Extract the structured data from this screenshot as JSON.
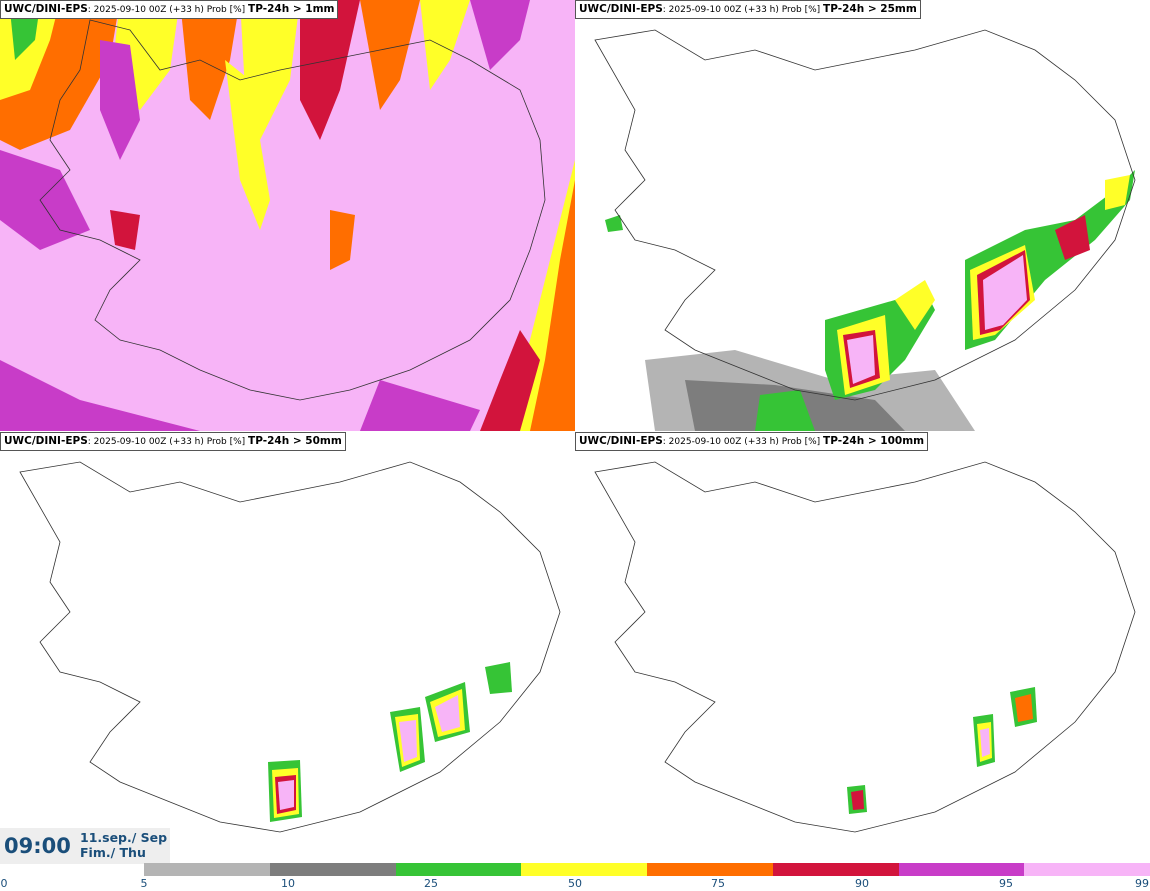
{
  "panels": [
    {
      "model": "UWC/DINI-EPS",
      "run": ": 2025-09-10 00Z (+33 h) Prob [%]",
      "threshold": "TP-24h > 1mm"
    },
    {
      "model": "UWC/DINI-EPS",
      "run": ": 2025-09-10 00Z (+33 h) Prob [%]",
      "threshold": "TP-24h > 25mm"
    },
    {
      "model": "UWC/DINI-EPS",
      "run": ": 2025-09-10 00Z (+33 h) Prob [%]",
      "threshold": "TP-24h > 50mm"
    },
    {
      "model": "UWC/DINI-EPS",
      "run": ": 2025-09-10 00Z (+33 h) Prob [%]",
      "threshold": "TP-24h > 100mm"
    }
  ],
  "time": {
    "clock": "09:00",
    "date_line1": "11.sep./ Sep",
    "date_line2": "Fim./ Thu"
  },
  "legend": {
    "ticks": [
      "0",
      "5",
      "10",
      "25",
      "50",
      "75",
      "90",
      "95",
      "99"
    ],
    "colors": [
      "#b4b4b4",
      "#7d7d7d",
      "#36c436",
      "#ffff28",
      "#ff6e00",
      "#d2143c",
      "#c83cc8",
      "#f7b4f7"
    ]
  }
}
